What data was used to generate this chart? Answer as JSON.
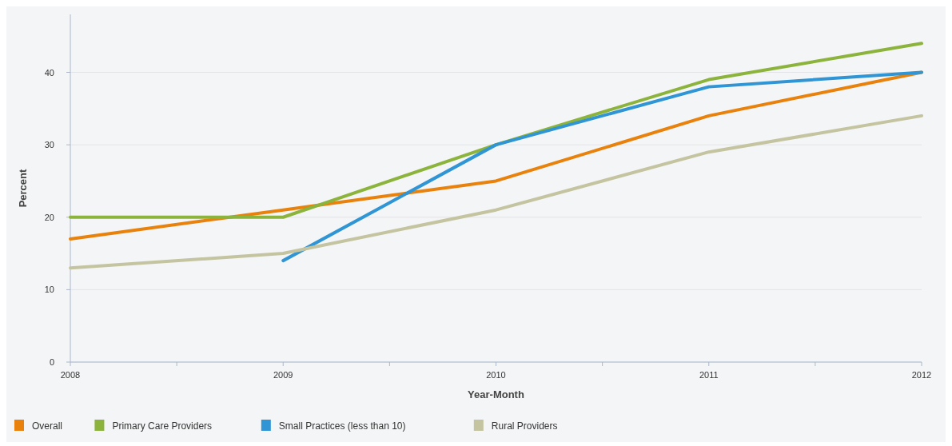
{
  "chart_data": {
    "type": "line",
    "xlabel": "Year-Month",
    "ylabel": "Percent",
    "x": [
      2008,
      2009,
      2010,
      2011,
      2012
    ],
    "series": [
      {
        "name": "Overall",
        "color": "#e8820c",
        "values": [
          17,
          21,
          25,
          34,
          40
        ]
      },
      {
        "name": "Primary Care Providers",
        "color": "#8cb43c",
        "values": [
          20,
          20,
          30,
          39,
          44
        ]
      },
      {
        "name": "Small Practices (less than 10)",
        "color": "#2f95d4",
        "values": [
          null,
          14,
          30,
          38,
          40
        ]
      },
      {
        "name": "Rural Providers",
        "color": "#c4c4a0",
        "values": [
          13,
          15,
          21,
          29,
          34
        ]
      }
    ],
    "xlim": [
      2008,
      2012
    ],
    "xticks": [
      2008,
      {
        "value": 2008.5,
        "label": null
      },
      2009,
      {
        "value": 2009.5,
        "label": null
      },
      2010,
      {
        "value": 2010.5,
        "label": null
      },
      2011,
      {
        "value": 2011.5,
        "label": null
      },
      2012
    ],
    "ylim": [
      0,
      48
    ],
    "yticks": [
      0,
      10,
      20,
      30,
      40
    ],
    "grid": "y",
    "legend": "bottom",
    "line_style": "solid",
    "marker": "none"
  }
}
